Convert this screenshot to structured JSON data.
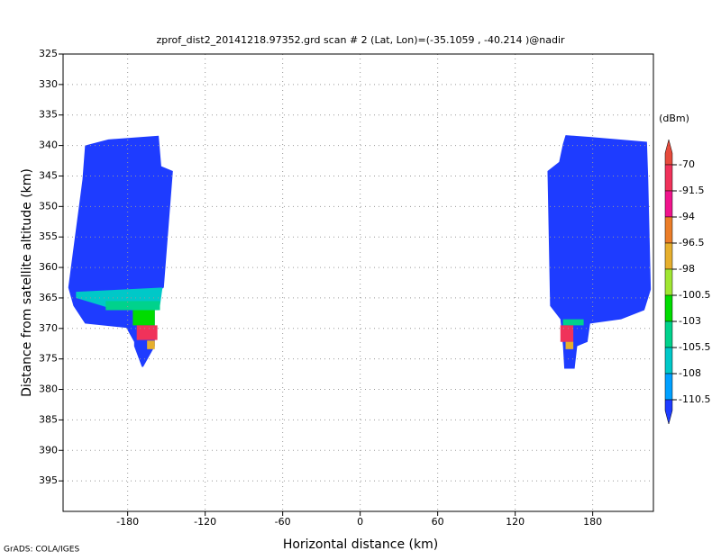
{
  "chart_data": {
    "type": "contour-map",
    "title": "zprof_dist2_20141218.97352.grd  scan # 2  (Lat, Lon)=(-35.1059 , -40.214 )@nadir",
    "x_label": "Horizontal distance (km)",
    "y_label": "Distance from satellite altitude (km)",
    "colorbar_label": "(dBm)",
    "footer": "GrADS: COLA/IGES",
    "xlim": [
      -230,
      227
    ],
    "ylim": [
      400,
      325
    ],
    "xticks": [
      -180,
      -120,
      -60,
      0,
      60,
      120,
      180
    ],
    "yticks": [
      325,
      330,
      335,
      340,
      345,
      350,
      355,
      360,
      365,
      370,
      375,
      380,
      385,
      390,
      395
    ],
    "grid": true,
    "levels": [
      -70,
      -91.5,
      -94,
      -96.5,
      -98,
      -100.5,
      -103,
      -105.5,
      -108,
      -110.5
    ],
    "colors": [
      "#e64b3c",
      "#f0325a",
      "#f0148c",
      "#eb7d28",
      "#e6af2d",
      "#a0e632",
      "#00dc00",
      "#00d28c",
      "#00c8c8",
      "#00a0ff",
      "#1e3cff"
    ],
    "regions": [
      {
        "value": -112,
        "x": [
          -213,
          -195,
          -156,
          -154,
          -145,
          -152,
          -162,
          -159,
          -159,
          -168,
          -169,
          -175,
          -175,
          -181,
          -213,
          -222,
          -226,
          -215
        ],
        "y": [
          340,
          339,
          338.4,
          343.4,
          344.2,
          363.3,
          364.8,
          367,
          372.9,
          376.3,
          376.3,
          372.9,
          372.2,
          369.9,
          369.2,
          366.3,
          363.3,
          345.6
        ]
      },
      {
        "value": -107,
        "x": [
          -220,
          -153,
          -155,
          -195,
          -220
        ],
        "y": [
          364,
          363.3,
          366.3,
          366.6,
          365
        ]
      },
      {
        "value": -104,
        "x": [
          -197,
          -155,
          -155,
          -197
        ],
        "y": [
          365.5,
          365.5,
          367,
          367
        ]
      },
      {
        "value": -101,
        "x": [
          -176,
          -159,
          -159,
          -176
        ],
        "y": [
          367,
          367,
          369.5,
          369.5
        ]
      },
      {
        "value": -85,
        "x": [
          -173,
          -157,
          -157,
          -173
        ],
        "y": [
          369.5,
          369.5,
          371.9,
          371.9
        ]
      },
      {
        "value": -97,
        "x": [
          -165,
          -159,
          -159,
          -165
        ],
        "y": [
          372,
          372,
          373.4,
          373.4
        ]
      },
      {
        "value": -112,
        "x": [
          159,
          178,
          222,
          223,
          225,
          220,
          202,
          178,
          176,
          168,
          166,
          158,
          157,
          155,
          147,
          145,
          154,
          157
        ],
        "y": [
          338.3,
          338.6,
          339.4,
          345.6,
          363.6,
          367,
          368.5,
          369.2,
          372.2,
          372.9,
          376.6,
          376.6,
          372.9,
          368.5,
          366.3,
          344.2,
          342.7,
          339.7
        ]
      },
      {
        "value": -104,
        "x": [
          157,
          173,
          173,
          157
        ],
        "y": [
          368.5,
          368.5,
          369.5,
          369.5
        ]
      },
      {
        "value": -85,
        "x": [
          155,
          165,
          165,
          155
        ],
        "y": [
          369.5,
          369.5,
          372.2,
          372.2
        ]
      },
      {
        "value": -97,
        "x": [
          159,
          165,
          165,
          159
        ],
        "y": [
          372.2,
          372.2,
          373.4,
          373.4
        ]
      }
    ]
  }
}
